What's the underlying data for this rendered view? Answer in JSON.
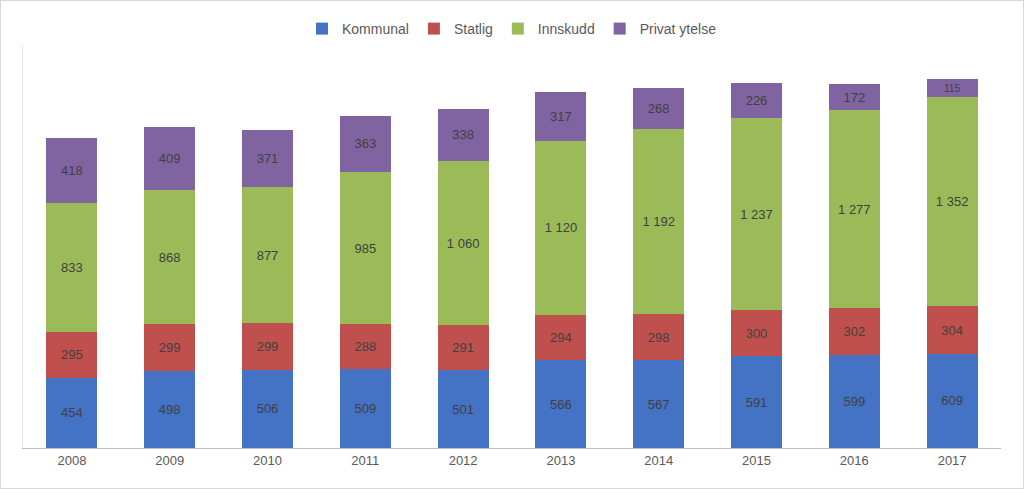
{
  "chart_data": {
    "type": "bar",
    "stacked": true,
    "data_labels": true,
    "legend": "top",
    "grid": false,
    "tick_labels": "x",
    "ylim": [
      0,
      2600
    ],
    "categories": [
      "2008",
      "2009",
      "2010",
      "2011",
      "2012",
      "2013",
      "2014",
      "2015",
      "2016",
      "2017"
    ],
    "series": [
      {
        "name": "Kommunal",
        "color": "#4472c4",
        "values": [
          454,
          498,
          506,
          509,
          501,
          566,
          567,
          591,
          599,
          609
        ]
      },
      {
        "name": "Statlig",
        "color": "#c0504d",
        "values": [
          295,
          299,
          299,
          288,
          291,
          294,
          298,
          300,
          302,
          304
        ]
      },
      {
        "name": "Innskudd",
        "color": "#9bbb59",
        "values": [
          833,
          868,
          877,
          985,
          1060,
          1120,
          1192,
          1237,
          1277,
          1352
        ],
        "value_labels": [
          "833",
          "868",
          "877",
          "985",
          "1 060",
          "1 120",
          "1 192",
          "1 237",
          "1 277",
          "1 352"
        ]
      },
      {
        "name": "Privat ytelse",
        "color": "#8064a2",
        "values": [
          418,
          409,
          371,
          363,
          338,
          317,
          268,
          226,
          172,
          115
        ]
      }
    ]
  }
}
